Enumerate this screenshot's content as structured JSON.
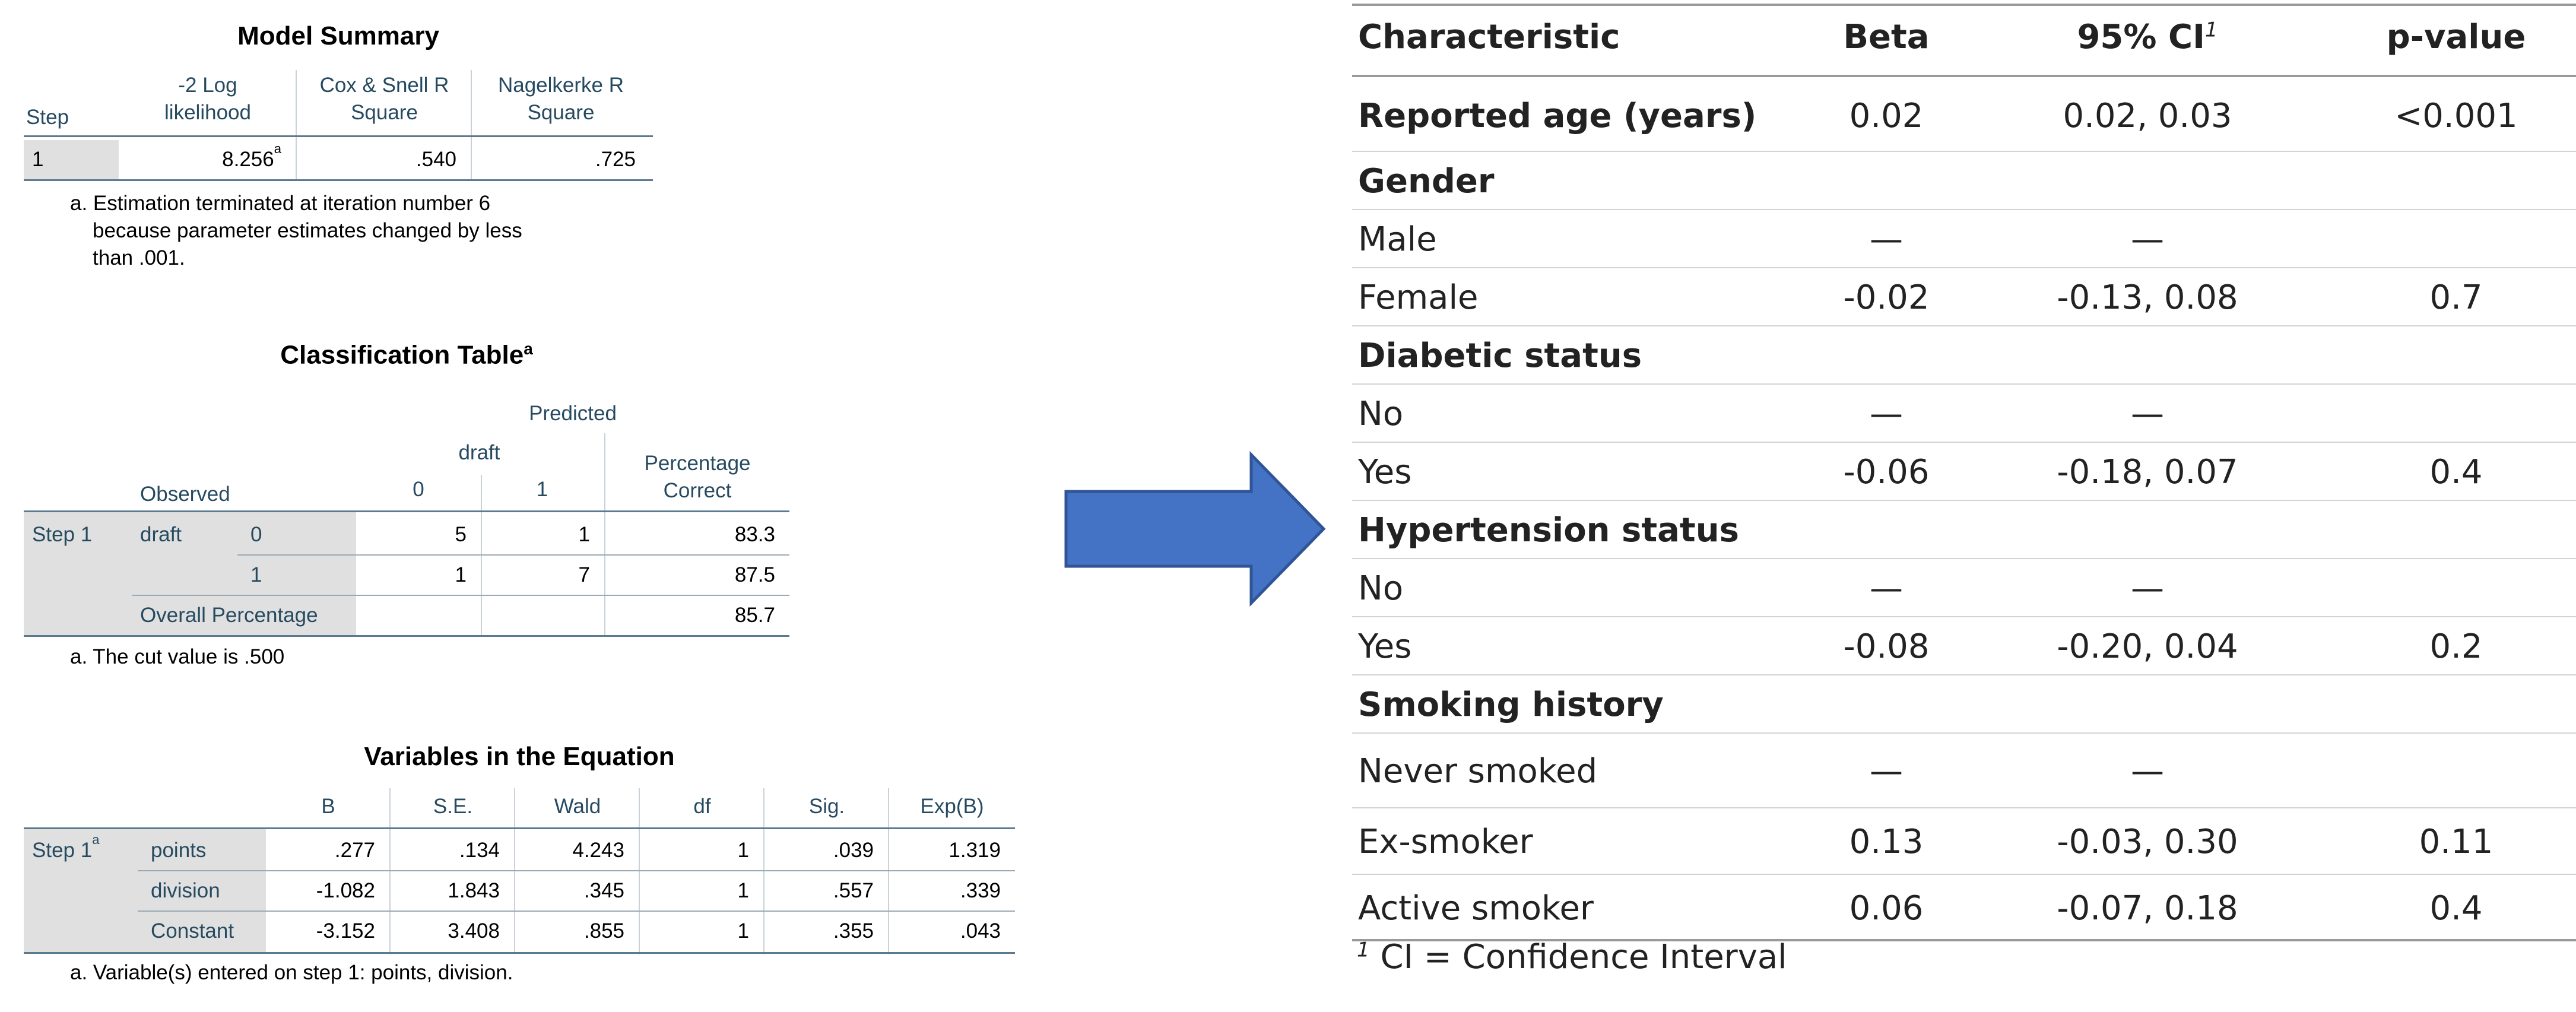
{
  "model_summary": {
    "title": "Model Summary",
    "headers": [
      "Step",
      "-2 Log\nlikelihood",
      "Cox & Snell R\nSquare",
      "Nagelkerke R\nSquare"
    ],
    "row": {
      "step": "1",
      "loglik": "8.256",
      "loglik_sup": "a",
      "cox": ".540",
      "nagel": ".725"
    },
    "footnote_lines": [
      "a. Estimation terminated at iteration number 6",
      "because parameter estimates changed by less",
      "than .001."
    ]
  },
  "classification": {
    "title": "Classification Table",
    "title_sup": "a",
    "predicted": "Predicted",
    "draft": "draft",
    "col0": "0",
    "col1": "1",
    "pct_header": "Percentage\nCorrect",
    "observed": "Observed",
    "step": "Step 1",
    "var": "draft",
    "rows": [
      {
        "label": "0",
        "c0": "5",
        "c1": "1",
        "pct": "83.3"
      },
      {
        "label": "1",
        "c0": "1",
        "c1": "7",
        "pct": "87.5"
      }
    ],
    "overall_label": "Overall Percentage",
    "overall_pct": "85.7",
    "footnote": "a. The cut value is .500"
  },
  "variables": {
    "title": "Variables in the Equation",
    "headers": [
      "B",
      "S.E.",
      "Wald",
      "df",
      "Sig.",
      "Exp(B)"
    ],
    "step": "Step 1",
    "step_sup": "a",
    "rows": [
      {
        "label": "points",
        "B": ".277",
        "SE": ".134",
        "Wald": "4.243",
        "df": "1",
        "Sig": ".039",
        "ExpB": "1.319"
      },
      {
        "label": "division",
        "B": "-1.082",
        "SE": "1.843",
        "Wald": ".345",
        "df": "1",
        "Sig": ".557",
        "ExpB": ".339"
      },
      {
        "label": "Constant",
        "B": "-3.152",
        "SE": "3.408",
        "Wald": ".855",
        "df": "1",
        "Sig": ".355",
        "ExpB": ".043"
      }
    ],
    "footnote": "a. Variable(s) entered on step 1: points, division."
  },
  "arrow": {
    "icon": "right-arrow-icon",
    "color": "#4472c4",
    "stroke": "#2f5597"
  },
  "regression_table": {
    "headers": {
      "characteristic": "Characteristic",
      "beta": "Beta",
      "ci": "95% CI",
      "ci_sup": "1",
      "p": "p-value"
    },
    "rows": [
      {
        "label": "Reported age (years)",
        "bold": true,
        "beta": "0.02",
        "ci": "0.02, 0.03",
        "p": "<0.001"
      },
      {
        "label": "Gender",
        "bold": true,
        "beta": "",
        "ci": "",
        "p": ""
      },
      {
        "label": "Male",
        "bold": false,
        "beta": "—",
        "ci": "—",
        "p": ""
      },
      {
        "label": "Female",
        "bold": false,
        "beta": "-0.02",
        "ci": "-0.13, 0.08",
        "p": "0.7"
      },
      {
        "label": "Diabetic status",
        "bold": true,
        "beta": "",
        "ci": "",
        "p": ""
      },
      {
        "label": "No",
        "bold": false,
        "beta": "—",
        "ci": "—",
        "p": ""
      },
      {
        "label": "Yes",
        "bold": false,
        "beta": "-0.06",
        "ci": "-0.18, 0.07",
        "p": "0.4"
      },
      {
        "label": "Hypertension status",
        "bold": true,
        "beta": "",
        "ci": "",
        "p": ""
      },
      {
        "label": "No",
        "bold": false,
        "beta": "—",
        "ci": "—",
        "p": ""
      },
      {
        "label": "Yes",
        "bold": false,
        "beta": "-0.08",
        "ci": "-0.20, 0.04",
        "p": "0.2"
      },
      {
        "label": "Smoking history",
        "bold": true,
        "beta": "",
        "ci": "",
        "p": ""
      },
      {
        "label": "Never smoked",
        "bold": false,
        "beta": "—",
        "ci": "—",
        "p": ""
      },
      {
        "label": "Ex-smoker",
        "bold": false,
        "beta": "0.13",
        "ci": "-0.03, 0.30",
        "p": "0.11"
      },
      {
        "label": "Active smoker",
        "bold": false,
        "beta": "0.06",
        "ci": "-0.07, 0.18",
        "p": "0.4"
      }
    ],
    "footnote_sup": "1",
    "footnote": "CI = Confidence Interval"
  }
}
